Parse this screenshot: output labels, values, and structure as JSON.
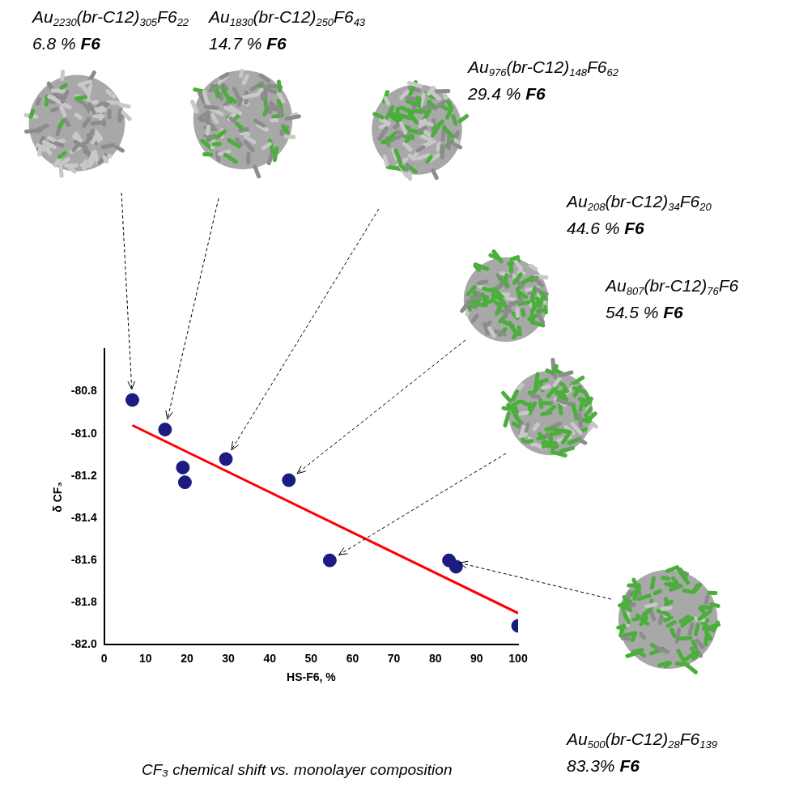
{
  "chart_data": {
    "type": "scatter",
    "caption": "CF₃ chemical shift vs. monolayer composition",
    "x_label": "HS-F6, %",
    "y_label": "δ CF₃",
    "xlim": [
      0,
      100
    ],
    "xticks": [
      0,
      10,
      20,
      30,
      40,
      50,
      60,
      70,
      80,
      90,
      100
    ],
    "ylim": [
      -82.0,
      -80.6
    ],
    "yticks": [
      {
        "value": -82,
        "label": "-82.0"
      },
      -81.8,
      -81.6,
      -81.4,
      -81.2,
      {
        "value": -81,
        "label": "-81.0"
      },
      -80.8
    ],
    "grid": false,
    "legend": "none",
    "series": [
      {
        "type": "scatter",
        "color": "#1b1b80",
        "marker": "circle",
        "x": [
          6.8,
          14.7,
          19.0,
          19.5,
          29.4,
          44.6,
          54.5,
          83.3,
          85.0,
          100.0
        ],
        "values": [
          -80.84,
          -80.98,
          -81.16,
          -81.23,
          -81.12,
          -81.22,
          -81.6,
          -81.6,
          -81.63,
          -81.91
        ]
      },
      {
        "type": "line",
        "color": "#ff0000",
        "line_style": "solid",
        "x": [
          6.8,
          100.0
        ],
        "values": [
          -80.96,
          -81.85
        ]
      }
    ],
    "annotations": [
      {
        "formula": [
          "Au",
          "2230",
          "(br-C12)",
          "305",
          "F6",
          "22"
        ],
        "composition": [
          "6.8 % ",
          "F6"
        ]
      },
      {
        "formula": [
          "Au",
          "1830",
          "(br-C12)",
          "250",
          "F6",
          "43"
        ],
        "composition": [
          "14.7 % ",
          "F6"
        ]
      },
      {
        "formula": [
          "Au",
          "976",
          "(br-C12)",
          "148",
          "F6",
          "62"
        ],
        "composition": [
          "29.4 % ",
          "F6"
        ]
      },
      {
        "formula": [
          "Au",
          "208",
          "(br-C12)",
          "34",
          "F6",
          "20"
        ],
        "composition": [
          "44.6 % ",
          "F6"
        ]
      },
      {
        "formula": [
          "Au",
          "807",
          "(br-C12)",
          "76",
          "F6"
        ],
        "composition": [
          "54.5 % ",
          "F6"
        ]
      },
      {
        "formula": [
          "Au",
          "500",
          "(br-C12)",
          "28",
          "F6",
          "139"
        ],
        "composition": [
          "83.3% ",
          "F6"
        ]
      }
    ]
  }
}
